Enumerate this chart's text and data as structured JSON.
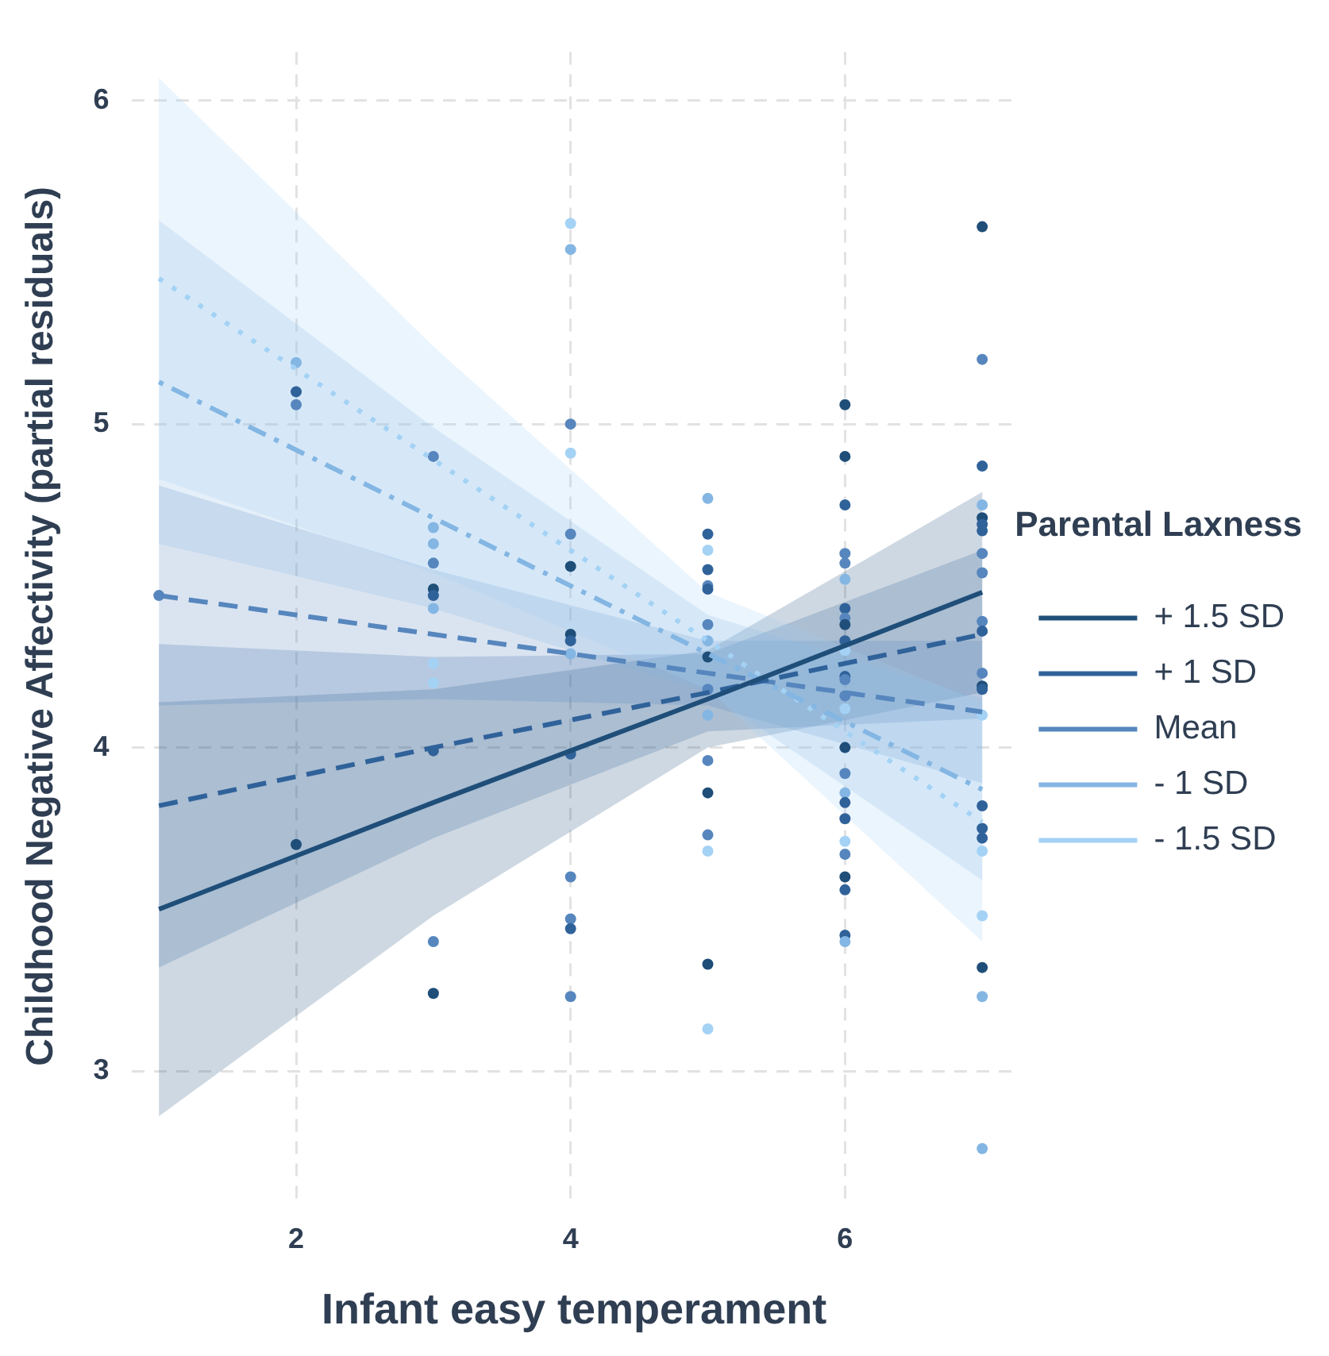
{
  "chart_data": {
    "type": "line",
    "xlabel": "Infant easy temperament",
    "ylabel": "Childhood Negative Affectivity (partial residuals)",
    "legend_title": "Parental Laxness",
    "legend": "right",
    "grid": true,
    "marker": "none",
    "xlim": [
      0.8,
      7.25
    ],
    "ylim": [
      2.6,
      6.15
    ],
    "xticks": [
      2,
      4,
      6
    ],
    "yticks": [
      3,
      4,
      5,
      6
    ],
    "series": [
      {
        "name": "+ 1.5 SD",
        "color": "#1f4e79",
        "line_style": "solid",
        "x": [
          1,
          3,
          5,
          7
        ],
        "values": [
          3.5,
          3.83,
          4.15,
          4.48
        ],
        "lower": [
          2.86,
          3.48,
          4.0,
          4.17
        ],
        "upper": [
          4.14,
          4.18,
          4.3,
          4.79
        ]
      },
      {
        "name": "+ 1 SD",
        "color": "#30629a",
        "line_style": "dashed",
        "x": [
          1,
          3,
          5,
          7
        ],
        "values": [
          3.82,
          4.0,
          4.17,
          4.35
        ],
        "lower": [
          3.32,
          3.72,
          4.05,
          4.09
        ],
        "upper": [
          4.32,
          4.28,
          4.29,
          4.61
        ]
      },
      {
        "name": "Mean",
        "color": "#5686bd",
        "line_style": "dashed",
        "x": [
          1,
          3,
          5,
          7
        ],
        "values": [
          4.47,
          4.35,
          4.23,
          4.11
        ],
        "lower": [
          4.13,
          4.15,
          4.13,
          3.89
        ],
        "upper": [
          4.81,
          4.55,
          4.33,
          4.33
        ]
      },
      {
        "name": "- 1 SD",
        "color": "#84b6e3",
        "line_style": "dashdot",
        "x": [
          1,
          3,
          5,
          7
        ],
        "values": [
          5.13,
          4.71,
          4.29,
          3.87
        ],
        "lower": [
          4.63,
          4.43,
          4.17,
          3.59
        ],
        "upper": [
          5.63,
          4.99,
          4.41,
          4.15
        ]
      },
      {
        "name": "- 1.5 SD",
        "color": "#a4d2f5",
        "line_style": "dotted",
        "x": [
          1,
          3,
          5,
          7
        ],
        "values": [
          5.45,
          4.89,
          4.33,
          3.77
        ],
        "lower": [
          4.83,
          4.54,
          4.18,
          3.4
        ],
        "upper": [
          6.07,
          5.24,
          4.48,
          4.14
        ]
      },
      {
        "type": "scatter",
        "marker": "circle",
        "color": "#5686bd",
        "x": [
          1,
          2,
          2,
          2,
          2,
          3,
          3,
          3,
          3,
          3,
          3,
          3,
          3,
          3,
          3,
          3,
          3,
          4,
          4,
          4,
          4,
          4,
          4,
          4,
          4,
          4,
          4,
          4,
          4,
          4,
          4,
          5,
          5,
          5,
          5,
          5,
          5,
          5,
          5,
          5,
          5,
          5,
          5,
          5,
          5,
          5,
          5,
          5,
          6,
          6,
          6,
          6,
          6,
          6,
          6,
          6,
          6,
          6,
          6,
          6,
          6,
          6,
          6,
          6,
          6,
          6,
          6,
          6,
          6,
          6,
          6,
          6,
          6,
          6,
          7,
          7,
          7,
          7,
          7,
          7,
          7,
          7,
          7,
          7,
          7,
          7,
          7,
          7,
          7,
          7,
          7,
          7,
          7,
          7,
          7,
          7,
          7
        ],
        "values": [
          4.47,
          5.19,
          5.1,
          5.06,
          3.7,
          4.9,
          4.68,
          4.63,
          4.57,
          4.49,
          4.47,
          4.43,
          4.26,
          4.2,
          3.99,
          3.4,
          3.24,
          5.62,
          5.54,
          5.0,
          4.91,
          4.66,
          4.56,
          4.35,
          4.33,
          4.29,
          3.98,
          3.6,
          3.47,
          3.44,
          3.23,
          4.77,
          4.66,
          4.61,
          4.55,
          4.5,
          4.49,
          4.38,
          4.33,
          4.28,
          4.18,
          4.1,
          3.96,
          3.86,
          3.73,
          3.68,
          3.33,
          3.13,
          5.06,
          4.9,
          4.75,
          4.6,
          4.57,
          4.52,
          4.43,
          4.4,
          4.38,
          4.33,
          4.3,
          4.22,
          4.21,
          4.16,
          4.12,
          4.0,
          3.92,
          3.86,
          3.83,
          3.78,
          3.71,
          3.67,
          3.6,
          3.56,
          3.42,
          3.4,
          5.61,
          5.2,
          4.87,
          4.75,
          4.71,
          4.69,
          4.67,
          4.6,
          4.54,
          4.39,
          4.36,
          4.23,
          4.19,
          4.18,
          4.1,
          3.82,
          3.75,
          3.72,
          3.68,
          3.48,
          3.32,
          3.23,
          2.76
        ],
        "colors": [
          "#5686bd",
          "#84b6e3",
          "#30629a",
          "#5686bd",
          "#1f4e79",
          "#5686bd",
          "#84b6e3",
          "#84b6e3",
          "#5686bd",
          "#1f4e79",
          "#30629a",
          "#84b6e3",
          "#a4d2f5",
          "#a4d2f5",
          "#30629a",
          "#5686bd",
          "#1f4e79",
          "#a4d2f5",
          "#84b6e3",
          "#5686bd",
          "#a4d2f5",
          "#5686bd",
          "#1f4e79",
          "#1f4e79",
          "#30629a",
          "#84b6e3",
          "#30629a",
          "#5686bd",
          "#5686bd",
          "#30629a",
          "#5686bd",
          "#84b6e3",
          "#30629a",
          "#a4d2f5",
          "#30629a",
          "#5686bd",
          "#30629a",
          "#5686bd",
          "#84b6e3",
          "#1f4e79",
          "#5686bd",
          "#84b6e3",
          "#5686bd",
          "#1f4e79",
          "#5686bd",
          "#a4d2f5",
          "#1f4e79",
          "#a4d2f5",
          "#1f4e79",
          "#1f4e79",
          "#30629a",
          "#5686bd",
          "#5686bd",
          "#84b6e3",
          "#30629a",
          "#5686bd",
          "#1f4e79",
          "#30629a",
          "#a4d2f5",
          "#30629a",
          "#5686bd",
          "#5686bd",
          "#a4d2f5",
          "#1f4e79",
          "#5686bd",
          "#84b6e3",
          "#30629a",
          "#30629a",
          "#a4d2f5",
          "#5686bd",
          "#1f4e79",
          "#30629a",
          "#30629a",
          "#84b6e3",
          "#1f4e79",
          "#5686bd",
          "#30629a",
          "#84b6e3",
          "#1f4e79",
          "#30629a",
          "#30629a",
          "#5686bd",
          "#5686bd",
          "#5686bd",
          "#30629a",
          "#5686bd",
          "#1f4e79",
          "#30629a",
          "#a4d2f5",
          "#30629a",
          "#30629a",
          "#30629a",
          "#a4d2f5",
          "#a4d2f5",
          "#1f4e79",
          "#84b6e3",
          "#84b6e3"
        ]
      }
    ]
  }
}
